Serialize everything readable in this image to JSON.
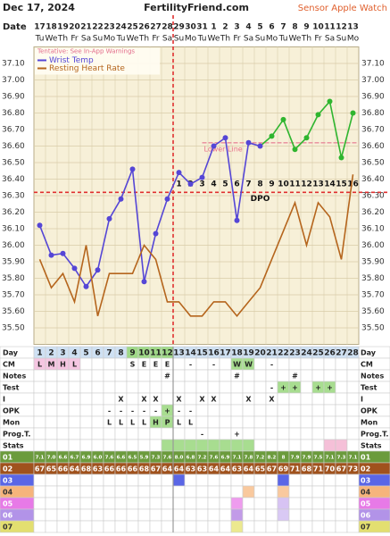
{
  "header": {
    "date": "Dec 17, 2024",
    "site": "FertilityFriend.com",
    "sensor": "Sensor Apple Watch"
  },
  "chart_data": {
    "type": "line",
    "date_label": "Date",
    "categories": [
      "17",
      "18",
      "19",
      "20",
      "21",
      "22",
      "23",
      "24",
      "25",
      "26",
      "27",
      "28",
      "29",
      "30",
      "31",
      "1",
      "2",
      "3",
      "4",
      "5",
      "6",
      "7",
      "8",
      "9",
      "10",
      "11",
      "12",
      "13"
    ],
    "weekdays": [
      "Tu",
      "We",
      "Th",
      "Fr",
      "Sa",
      "Su",
      "Mo",
      "Tu",
      "We",
      "Th",
      "Fr",
      "Sa",
      "Su",
      "Mo",
      "Tu",
      "We",
      "Th",
      "Fr",
      "Sa",
      "Su",
      "Mo",
      "Tu",
      "We",
      "Th",
      "Fr",
      "Sa",
      "Su",
      "Mo"
    ],
    "ylim": [
      35.4,
      37.2
    ],
    "yticks": [
      {
        "value": 35.5,
        "label": "35.50"
      },
      {
        "value": 35.6,
        "label": "35.60"
      },
      {
        "value": 35.7,
        "label": "35.70"
      },
      {
        "value": 35.8,
        "label": "35.80"
      },
      {
        "value": 35.9,
        "label": "35.90"
      },
      {
        "value": 36.0,
        "label": "36.00"
      },
      {
        "value": 36.1,
        "label": "36.10"
      },
      {
        "value": 36.2,
        "label": "36.20"
      },
      {
        "value": 36.3,
        "label": "36.30"
      },
      {
        "value": 36.4,
        "label": "36.40"
      },
      {
        "value": 36.5,
        "label": "36.50"
      },
      {
        "value": 36.6,
        "label": "36.60"
      },
      {
        "value": 36.7,
        "label": "36.70"
      },
      {
        "value": 36.8,
        "label": "36.80"
      },
      {
        "value": 36.9,
        "label": "36.90"
      },
      {
        "value": 37.0,
        "label": "37.00"
      },
      {
        "value": 37.1,
        "label": "37.10"
      }
    ],
    "y2lim": [
      61.0,
      82.0
    ],
    "grid": true,
    "legend_note": "Tentative: See In-App Warnings",
    "series": [
      {
        "name": "Wrist Temp",
        "color": "#5546d6",
        "point_colors": [
          "#5546d6",
          "#5546d6",
          "#5546d6",
          "#5546d6",
          "#5546d6",
          "#5546d6",
          "#5546d6",
          "#5546d6",
          "#5546d6",
          "#5546d6",
          "#5546d6",
          "#5546d6",
          "#5546d6",
          "#5546d6",
          "#5546d6",
          "#5546d6",
          "#5546d6",
          "#5546d6",
          "#5546d6",
          "#5546d6",
          "#2fb52f",
          "#2fb52f",
          "#2fb52f",
          "#2fb52f",
          "#2fb52f",
          "#2fb52f",
          "#2fb52f",
          "#2fb52f"
        ],
        "values": [
          36.12,
          35.94,
          35.95,
          35.86,
          35.75,
          35.85,
          36.16,
          36.28,
          36.46,
          35.78,
          36.07,
          36.28,
          36.44,
          36.37,
          36.41,
          36.6,
          36.65,
          36.15,
          36.62,
          36.6,
          36.66,
          36.76,
          36.58,
          36.65,
          36.79,
          36.87,
          36.53,
          36.8
        ]
      },
      {
        "name": "Resting Heart Rate",
        "color": "#b5651d",
        "axis": "y2",
        "values": [
          67,
          65,
          66,
          64,
          68,
          63,
          66,
          66,
          66,
          68,
          67,
          64,
          64,
          63,
          63,
          64,
          64,
          63,
          64,
          65,
          67,
          69,
          71,
          68,
          71,
          70,
          67,
          73
        ]
      }
    ],
    "coverline": 36.32,
    "coverline_color": "#e03030",
    "lower_line": 36.62,
    "lower_line_label": "Lower Line",
    "dpo_label": "DPO",
    "dpo": [
      null,
      null,
      null,
      null,
      null,
      null,
      null,
      null,
      null,
      null,
      null,
      null,
      1,
      2,
      3,
      4,
      5,
      6,
      7,
      8,
      9,
      10,
      11,
      12,
      13,
      14,
      15,
      16
    ]
  },
  "table": {
    "rows": [
      {
        "label": "Day",
        "bg": "#cfe1f3",
        "cells": [
          1,
          2,
          3,
          4,
          5,
          6,
          7,
          8,
          9,
          10,
          11,
          12,
          13,
          14,
          15,
          16,
          17,
          18,
          19,
          20,
          21,
          22,
          23,
          24,
          25,
          26,
          27,
          28
        ],
        "fills": [
          {
            "color": "#9fd987",
            "days": [
              9,
              10,
              11,
              12
            ]
          }
        ]
      },
      {
        "label": "CM",
        "cells": [
          "L",
          "M",
          "H",
          "L",
          null,
          null,
          null,
          null,
          "S",
          "E",
          "E",
          "E",
          null,
          "-",
          null,
          "-",
          null,
          "W",
          "W",
          null,
          "-",
          null,
          null,
          null,
          null,
          null,
          null,
          null
        ],
        "fills": [
          {
            "color": "#f5c6e2",
            "days": [
              1,
              2,
              3,
              4
            ]
          },
          {
            "color": "#a8dd90",
            "days": [
              18,
              19
            ]
          }
        ]
      },
      {
        "label": "Notes",
        "cells": [
          null,
          null,
          null,
          null,
          null,
          null,
          null,
          null,
          null,
          null,
          null,
          "#",
          null,
          null,
          null,
          null,
          null,
          "#",
          null,
          null,
          null,
          null,
          "#",
          null,
          null,
          null,
          null,
          null
        ]
      },
      {
        "label": "Test",
        "cells": [
          null,
          null,
          null,
          null,
          null,
          null,
          null,
          null,
          null,
          null,
          null,
          null,
          null,
          null,
          null,
          null,
          null,
          null,
          null,
          null,
          "-",
          "+",
          "+",
          null,
          "+",
          "+",
          null,
          null
        ],
        "fills": [
          {
            "color": "#a8dd90",
            "days": [
              22,
              23,
              25,
              26
            ]
          }
        ]
      },
      {
        "label": "I",
        "cells": [
          null,
          null,
          null,
          null,
          null,
          null,
          null,
          "X",
          null,
          "X",
          "X",
          null,
          "X",
          null,
          "X",
          "X",
          null,
          null,
          "X",
          null,
          "X",
          null,
          null,
          null,
          null,
          null,
          null,
          null
        ]
      },
      {
        "label": "OPK",
        "cells": [
          null,
          null,
          null,
          null,
          null,
          null,
          "-",
          "-",
          "-",
          "-",
          "-",
          "+",
          "-",
          "-",
          null,
          null,
          null,
          null,
          null,
          null,
          null,
          null,
          null,
          null,
          null,
          null,
          null,
          null
        ],
        "fills": [
          {
            "color": "#a8dd90",
            "days": [
              12
            ]
          }
        ]
      },
      {
        "label": "Mon",
        "cells": [
          null,
          null,
          null,
          null,
          null,
          null,
          "L",
          "L",
          "L",
          "L",
          "H",
          "P",
          "L",
          "L",
          null,
          null,
          null,
          null,
          null,
          null,
          null,
          null,
          null,
          null,
          null,
          null,
          null,
          null
        ],
        "fills": [
          {
            "color": "#a8dd90",
            "days": [
              11,
              12
            ]
          }
        ]
      },
      {
        "label": "Prog.T.",
        "cells": [
          null,
          null,
          null,
          null,
          null,
          null,
          null,
          null,
          null,
          null,
          null,
          null,
          null,
          null,
          "-",
          null,
          null,
          "+",
          null,
          null,
          null,
          null,
          null,
          null,
          null,
          null,
          null,
          null
        ]
      },
      {
        "label": "Stats",
        "fills": [
          {
            "color": "#a8dd90",
            "days": [
              12,
              13,
              14,
              15,
              16,
              17,
              18,
              19
            ]
          },
          {
            "color": "#f5c0d8",
            "days": [
              26,
              27
            ]
          }
        ]
      },
      {
        "label": "01",
        "bg": "#6b9b3c",
        "text_color": "#fff",
        "label_color": "#6b9b3c",
        "label_text_color": "#fff",
        "cells": [
          "7.1",
          "7.0",
          "6.6",
          "6.7",
          "6.9",
          "6.0",
          "7.6",
          "6.6",
          "6.5",
          "5.9",
          "7.3",
          "7.6",
          "8.0",
          "6.8",
          "7.2",
          "7.6",
          "6.9",
          "7.1",
          "7.8",
          "7.2",
          "8.2",
          "8",
          "7.9",
          "7.9",
          "7.5",
          "7.1",
          "7.3",
          "7.1"
        ]
      },
      {
        "label": "02",
        "bg": "#a0521d",
        "text_color": "#fff",
        "label_color": "#a0521d",
        "label_text_color": "#fff"
      },
      {
        "label": "03",
        "label_color": "#5a66e6",
        "label_text_color": "#fff",
        "fills": [
          {
            "color": "#5a66e6",
            "days": [
              13,
              22
            ]
          }
        ]
      },
      {
        "label": "04",
        "label_color": "#f6b47c",
        "label_text_color": "#333",
        "fills": [
          {
            "color": "#f9c99e",
            "days": [
              19,
              22
            ]
          }
        ]
      },
      {
        "label": "05",
        "label_color": "#e77ae7",
        "label_text_color": "#fff",
        "fills": [
          {
            "color": "#ee9cee",
            "days": [
              18
            ]
          },
          {
            "color": "#d7c3f3",
            "days": [
              22
            ]
          }
        ]
      },
      {
        "label": "06",
        "label_color": "#b293e8",
        "label_text_color": "#fff",
        "fills": [
          {
            "color": "#c29be8",
            "days": [
              18
            ]
          },
          {
            "color": "#d9c9f4",
            "days": [
              22
            ]
          }
        ]
      },
      {
        "label": "07",
        "label_color": "#e3df70",
        "label_text_color": "#333",
        "fills": [
          {
            "color": "#ece98f",
            "days": [
              18
            ]
          }
        ]
      }
    ]
  }
}
